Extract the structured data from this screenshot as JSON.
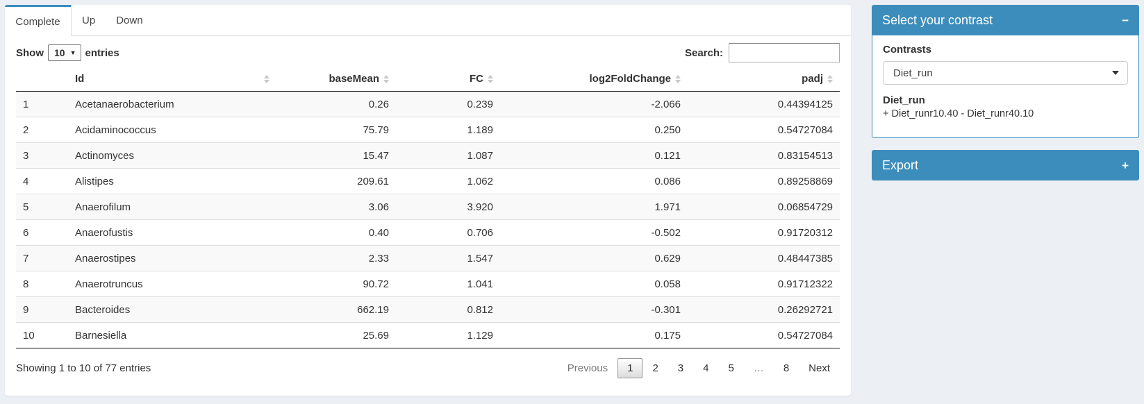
{
  "colors": {
    "accent": "#3c8dbc"
  },
  "tabs": [
    {
      "label": "Complete",
      "active": true
    },
    {
      "label": "Up",
      "active": false
    },
    {
      "label": "Down",
      "active": false
    }
  ],
  "length_control": {
    "prefix": "Show",
    "selected": "10",
    "suffix": "entries"
  },
  "search": {
    "label": "Search:",
    "value": ""
  },
  "table": {
    "columns": {
      "rownum": "",
      "id": "Id",
      "baseMean": "baseMean",
      "fc": "FC",
      "log2fc": "log2FoldChange",
      "padj": "padj"
    },
    "rows": [
      {
        "num": "1",
        "id": "Acetanaerobacterium",
        "baseMean": "0.26",
        "fc": "0.239",
        "log2fc": "-2.066",
        "padj": "0.44394125"
      },
      {
        "num": "2",
        "id": "Acidaminococcus",
        "baseMean": "75.79",
        "fc": "1.189",
        "log2fc": "0.250",
        "padj": "0.54727084"
      },
      {
        "num": "3",
        "id": "Actinomyces",
        "baseMean": "15.47",
        "fc": "1.087",
        "log2fc": "0.121",
        "padj": "0.83154513"
      },
      {
        "num": "4",
        "id": "Alistipes",
        "baseMean": "209.61",
        "fc": "1.062",
        "log2fc": "0.086",
        "padj": "0.89258869"
      },
      {
        "num": "5",
        "id": "Anaerofilum",
        "baseMean": "3.06",
        "fc": "3.920",
        "log2fc": "1.971",
        "padj": "0.06854729"
      },
      {
        "num": "6",
        "id": "Anaerofustis",
        "baseMean": "0.40",
        "fc": "0.706",
        "log2fc": "-0.502",
        "padj": "0.91720312"
      },
      {
        "num": "7",
        "id": "Anaerostipes",
        "baseMean": "2.33",
        "fc": "1.547",
        "log2fc": "0.629",
        "padj": "0.48447385"
      },
      {
        "num": "8",
        "id": "Anaerotruncus",
        "baseMean": "90.72",
        "fc": "1.041",
        "log2fc": "0.058",
        "padj": "0.91712322"
      },
      {
        "num": "9",
        "id": "Bacteroides",
        "baseMean": "662.19",
        "fc": "0.812",
        "log2fc": "-0.301",
        "padj": "0.26292721"
      },
      {
        "num": "10",
        "id": "Barnesiella",
        "baseMean": "25.69",
        "fc": "1.129",
        "log2fc": "0.175",
        "padj": "0.54727084"
      }
    ]
  },
  "footer": {
    "info": "Showing 1 to 10 of 77 entries",
    "previous_label": "Previous",
    "pages": [
      "1",
      "2",
      "3",
      "4",
      "5",
      "…",
      "8"
    ],
    "next_label": "Next"
  },
  "sidebar": {
    "contrast_panel": {
      "title": "Select your contrast",
      "collapse_icon": "−",
      "contrasts_label": "Contrasts",
      "selected_contrast": "Diet_run",
      "contrast_name": "Diet_run",
      "contrast_formula": "+ Diet_runr10.40 - Diet_runr40.10"
    },
    "export_panel": {
      "title": "Export",
      "expand_icon": "+"
    }
  }
}
